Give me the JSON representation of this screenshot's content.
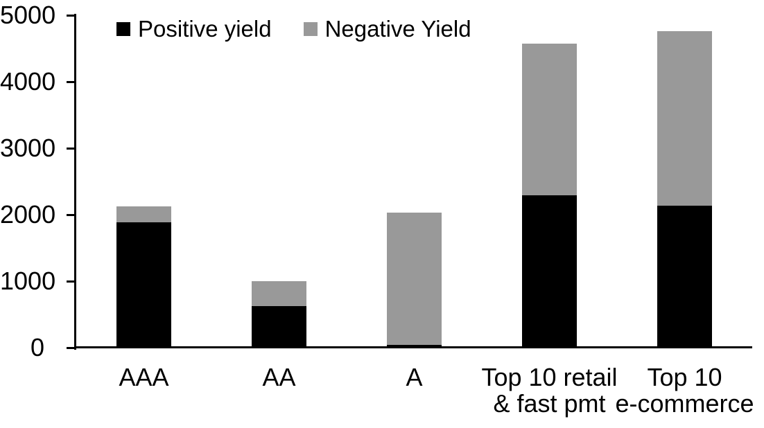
{
  "chart_data": {
    "type": "bar",
    "stacked": true,
    "title": "",
    "xlabel": "",
    "ylabel": "",
    "categories": [
      "AAA",
      "AA",
      "A",
      "Top 10 retail\n& fast pmt",
      "Top 10\ne-commerce"
    ],
    "series": [
      {
        "name": "Positive yield",
        "color": "#000000",
        "values": [
          1890,
          620,
          40,
          2290,
          2140
        ]
      },
      {
        "name": "Negative Yield",
        "color": "#999999",
        "values": [
          230,
          380,
          1990,
          2280,
          2620
        ]
      }
    ],
    "totals": [
      2120,
      1000,
      2030,
      4570,
      4760
    ],
    "ylim": [
      0,
      5000
    ],
    "yticks": [
      0,
      1000,
      2000,
      3000,
      4000,
      5000
    ],
    "grid": false,
    "legend_position": "top-left",
    "colors": {
      "axis": "#000000",
      "text": "#000000",
      "background": "#ffffff",
      "positive": "#000000",
      "negative": "#999999"
    }
  }
}
